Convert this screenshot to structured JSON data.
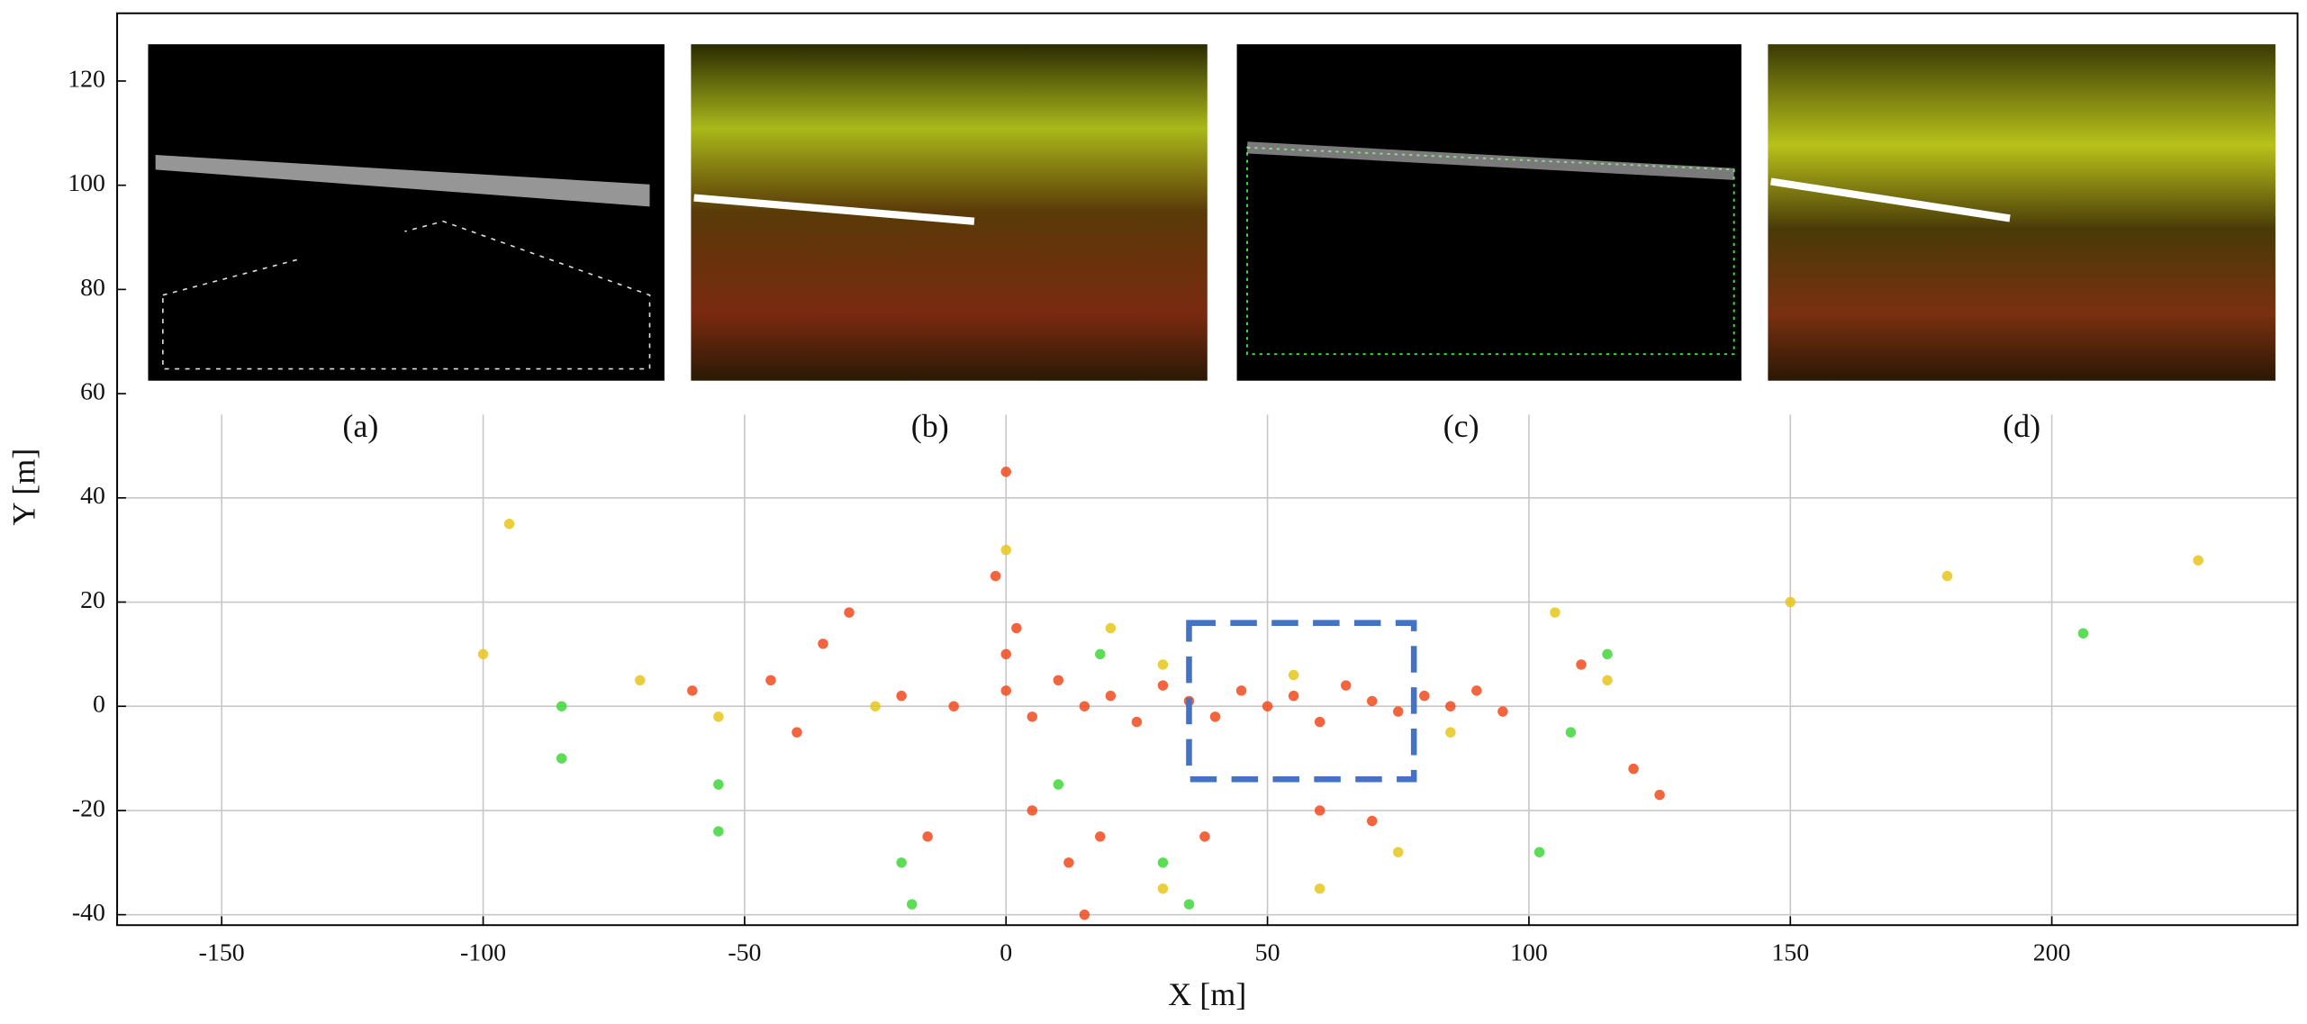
{
  "chart_data": {
    "type": "scatter",
    "xlabel": "X [m]",
    "ylabel": "Y [m]",
    "xlim": [
      -170,
      247
    ],
    "ylim": [
      -42,
      133
    ],
    "xticks": [
      -150,
      -100,
      -50,
      0,
      50,
      100,
      150,
      200
    ],
    "yticks": [
      -40,
      -20,
      0,
      20,
      40,
      60,
      80,
      100,
      120
    ],
    "grid": true,
    "series": [
      {
        "color": "#f04a1c",
        "x": [
          -20,
          -10,
          0,
          5,
          10,
          15,
          20,
          25,
          30,
          35,
          40,
          45,
          50,
          55,
          60,
          65,
          70,
          75,
          80,
          85,
          90,
          95,
          0,
          2,
          -2,
          0,
          5,
          12,
          18,
          38,
          60,
          70,
          -60,
          -45,
          -35,
          -30,
          -40,
          110,
          120,
          125,
          -15,
          15
        ],
        "values": [
          2,
          0,
          3,
          -2,
          5,
          0,
          2,
          -3,
          4,
          1,
          -2,
          3,
          0,
          2,
          -3,
          4,
          1,
          -1,
          2,
          0,
          3,
          -1,
          10,
          15,
          25,
          45,
          -20,
          -30,
          -25,
          -25,
          -20,
          -22,
          3,
          5,
          12,
          18,
          -5,
          8,
          -12,
          -17,
          -25,
          -40
        ]
      },
      {
        "color": "#e6c619",
        "x": [
          -70,
          -55,
          -25,
          30,
          55,
          85,
          105,
          115,
          150,
          180,
          228,
          -100,
          -95,
          0,
          20,
          60,
          75,
          30
        ],
        "values": [
          5,
          -2,
          0,
          8,
          6,
          -5,
          18,
          5,
          20,
          25,
          28,
          10,
          35,
          30,
          15,
          -35,
          -28,
          -35
        ]
      },
      {
        "color": "#3fd63a",
        "x": [
          -85,
          -85,
          -55,
          -55,
          -20,
          -18,
          10,
          30,
          35,
          102,
          115,
          108,
          18,
          206
        ],
        "values": [
          0,
          -10,
          -15,
          -24,
          -30,
          -38,
          -15,
          -30,
          -38,
          -28,
          10,
          -5,
          10,
          14
        ]
      }
    ],
    "highlight_box": {
      "x": [
        35,
        78
      ],
      "y": [
        -14,
        16
      ],
      "color": "#4472c4"
    },
    "annotations": [
      "(a)",
      "(b)",
      "(c)",
      "(d)"
    ]
  }
}
